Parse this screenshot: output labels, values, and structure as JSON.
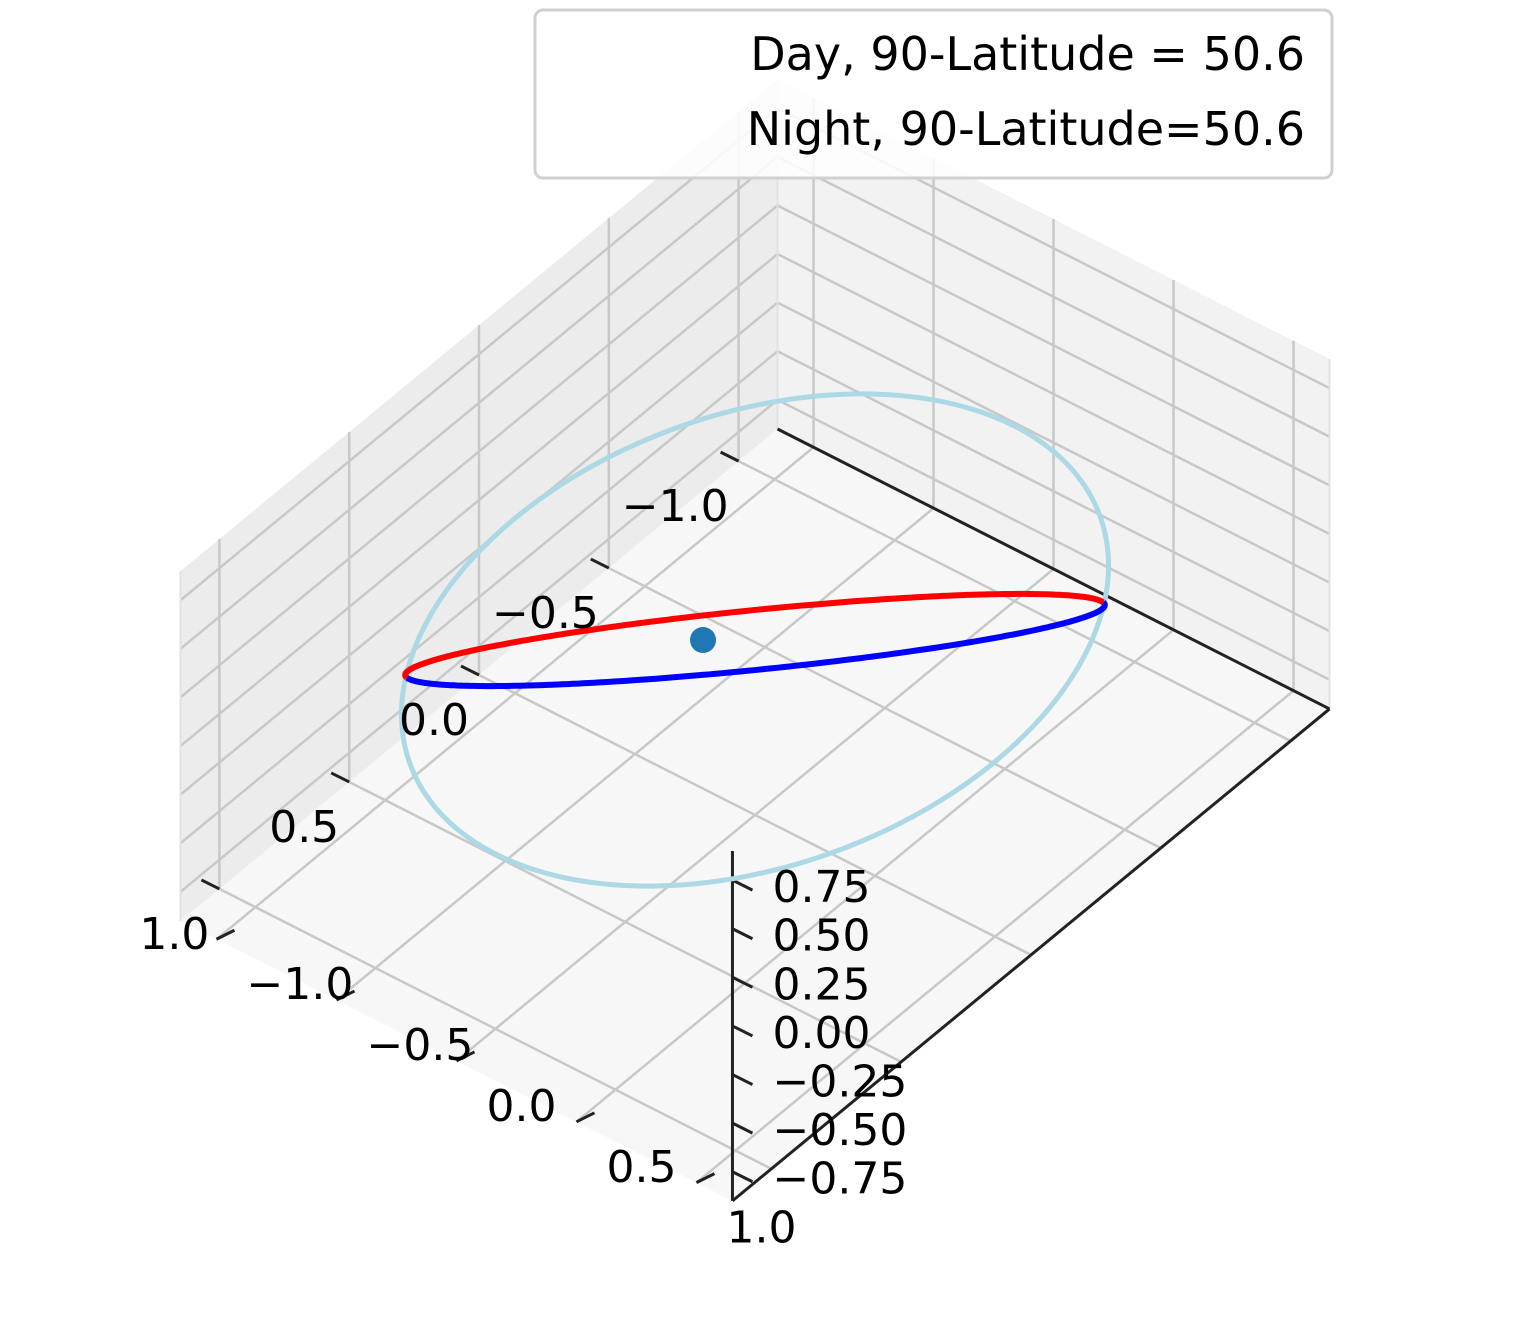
{
  "chart_data": {
    "type": "line3d",
    "title": "",
    "xlabel": "",
    "ylabel": "",
    "zlabel": "",
    "xlim": [
      -1.15,
      1.15
    ],
    "ylim": [
      -1.15,
      1.15
    ],
    "zlim": [
      -0.9,
      0.9
    ],
    "x_ticks": [
      "−1.0",
      "−0.5",
      "0.0",
      "0.5",
      "1.0"
    ],
    "y_ticks": [
      "−1.0",
      "−0.5",
      "0.0",
      "0.5",
      "1.0"
    ],
    "z_ticks": [
      "−0.75",
      "−0.50",
      "−0.25",
      "0.00",
      "0.25",
      "0.50",
      "0.75"
    ],
    "grid": true,
    "legend_position": "top-right",
    "series": [
      {
        "name": "Day, 90-Latitude = 50.6",
        "color": "#ff0000",
        "shape": "circle tilted by 50.6° from vertical, part with z ≥ 0",
        "radius": 1.0
      },
      {
        "name": "Night, 90-Latitude=50.6",
        "color": "#0000ff",
        "shape": "circle tilted by 50.6° from vertical, part with z < 0",
        "radius": 1.0
      }
    ],
    "equator": {
      "color": "#add8e6",
      "radius": 1.0,
      "z": 0
    },
    "center_point": {
      "x": 0,
      "y": 0,
      "z": 0,
      "color": "#1f77b4"
    },
    "tilt_deg": 50.6
  }
}
